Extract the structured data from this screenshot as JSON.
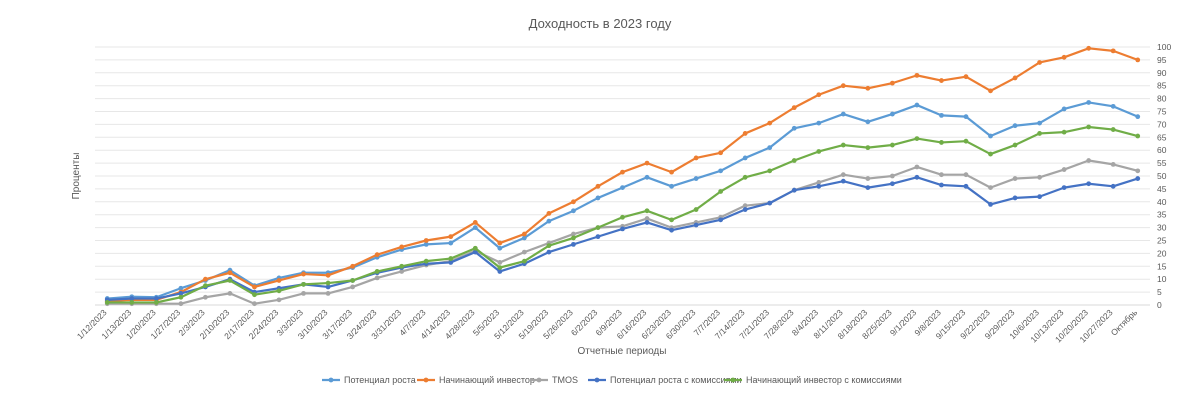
{
  "chart_data": {
    "type": "line",
    "title": "Доходность в 2023 году",
    "xlabel": "Отчетные периоды",
    "ylabel": "Проценты",
    "ylim": [
      0,
      100
    ],
    "yticks": [
      0,
      5,
      10,
      15,
      20,
      25,
      30,
      35,
      40,
      45,
      50,
      55,
      60,
      65,
      70,
      75,
      80,
      85,
      90,
      95,
      100
    ],
    "grid": true,
    "legend_position": "bottom",
    "categories": [
      "1/12/2023",
      "1/13/2023",
      "1/20/2023",
      "1/27/2023",
      "2/3/2023",
      "2/10/2023",
      "2/17/2023",
      "2/24/2023",
      "3/3/2023",
      "3/10/2023",
      "3/17/2023",
      "3/24/2023",
      "3/31/2023",
      "4/7/2023",
      "4/14/2023",
      "4/28/2023",
      "5/5/2023",
      "5/12/2023",
      "5/19/2023",
      "5/26/2023",
      "6/2/2023",
      "6/9/2023",
      "6/16/2023",
      "6/23/2023",
      "6/30/2023",
      "7/7/2023",
      "7/14/2023",
      "7/21/2023",
      "7/28/2023",
      "8/4/2023",
      "8/11/2023",
      "8/18/2023",
      "8/25/2023",
      "9/1/2023",
      "9/8/2023",
      "9/15/2023",
      "9/22/2023",
      "9/29/2023",
      "10/6/2023",
      "10/13/2023",
      "10/20/2023",
      "10/27/2023",
      "Октябрь"
    ],
    "series": [
      {
        "name": "Потенциал роста",
        "color": "#5B9BD5",
        "values": [
          2.5,
          3.2,
          3.0,
          6.5,
          9.5,
          13.5,
          7.5,
          10.5,
          12.5,
          12.5,
          14.5,
          18.5,
          21.5,
          23.5,
          24,
          30,
          22,
          26,
          32.5,
          36.5,
          41.5,
          45.5,
          49.5,
          46,
          49,
          52,
          57,
          61,
          68.5,
          70.5,
          74,
          71,
          74,
          77.5,
          73.5,
          73,
          65.5,
          69.5,
          70.5,
          76,
          78.5,
          77,
          73
        ]
      },
      {
        "name": "Начинающий инвестор",
        "color": "#ED7D31",
        "values": [
          1.5,
          2.0,
          2.0,
          5.0,
          10.0,
          12.5,
          7.0,
          9.5,
          12.0,
          11.5,
          15.0,
          19.5,
          22.5,
          25.0,
          26.5,
          32.0,
          24.0,
          27.5,
          35.5,
          40.0,
          46.0,
          51.5,
          55.0,
          51.5,
          57.0,
          59.0,
          66.5,
          70.5,
          76.5,
          81.5,
          85.0,
          84.0,
          86.0,
          89.0,
          87.0,
          88.5,
          83.0,
          88.0,
          94.0,
          96.0,
          99.5,
          98.5,
          95.0
        ]
      },
      {
        "name": "TMOS",
        "color": "#A5A5A5",
        "values": [
          0.5,
          0.5,
          0.5,
          0.5,
          3.0,
          4.5,
          0.5,
          2.0,
          4.5,
          4.5,
          7.0,
          10.5,
          13.0,
          15.5,
          17.0,
          21.0,
          16.5,
          20.5,
          24.0,
          27.5,
          30.0,
          30.5,
          33.5,
          30.0,
          32.0,
          34.0,
          38.5,
          39.5,
          44.5,
          47.5,
          50.5,
          49.0,
          50.0,
          53.5,
          50.5,
          50.5,
          45.5,
          49.0,
          49.5,
          52.5,
          56.0,
          54.5,
          52.0
        ]
      },
      {
        "name": "Потенциал роста с комиссиями",
        "color": "#4472C4",
        "values": [
          2.0,
          2.5,
          2.5,
          4.5,
          7.0,
          10.0,
          5.0,
          6.5,
          8.0,
          7.0,
          9.5,
          12.5,
          14.5,
          16.0,
          16.5,
          20.5,
          13.0,
          16.0,
          20.5,
          23.5,
          26.5,
          29.5,
          32.0,
          29.0,
          31.0,
          33.0,
          37.0,
          39.5,
          44.5,
          46.0,
          48.0,
          45.5,
          47.0,
          49.5,
          46.5,
          46.0,
          39.0,
          41.5,
          42.0,
          45.5,
          47.0,
          46.0,
          49.0
        ]
      },
      {
        "name": "Начинающий инвестор с комиссиями",
        "color": "#70AD47",
        "values": [
          1.0,
          1.0,
          1.0,
          3.0,
          7.5,
          9.5,
          4.0,
          5.5,
          8.0,
          8.5,
          9.5,
          13.0,
          15.0,
          17.0,
          18.0,
          22.0,
          14.5,
          17.0,
          23.0,
          26.0,
          30.0,
          34.0,
          36.5,
          33.0,
          37.0,
          44.0,
          49.5,
          52.0,
          56.0,
          59.5,
          62.0,
          61.0,
          62.0,
          64.5,
          63.0,
          63.5,
          58.5,
          62.0,
          66.5,
          67.0,
          69.0,
          68.0,
          65.5
        ]
      }
    ]
  }
}
